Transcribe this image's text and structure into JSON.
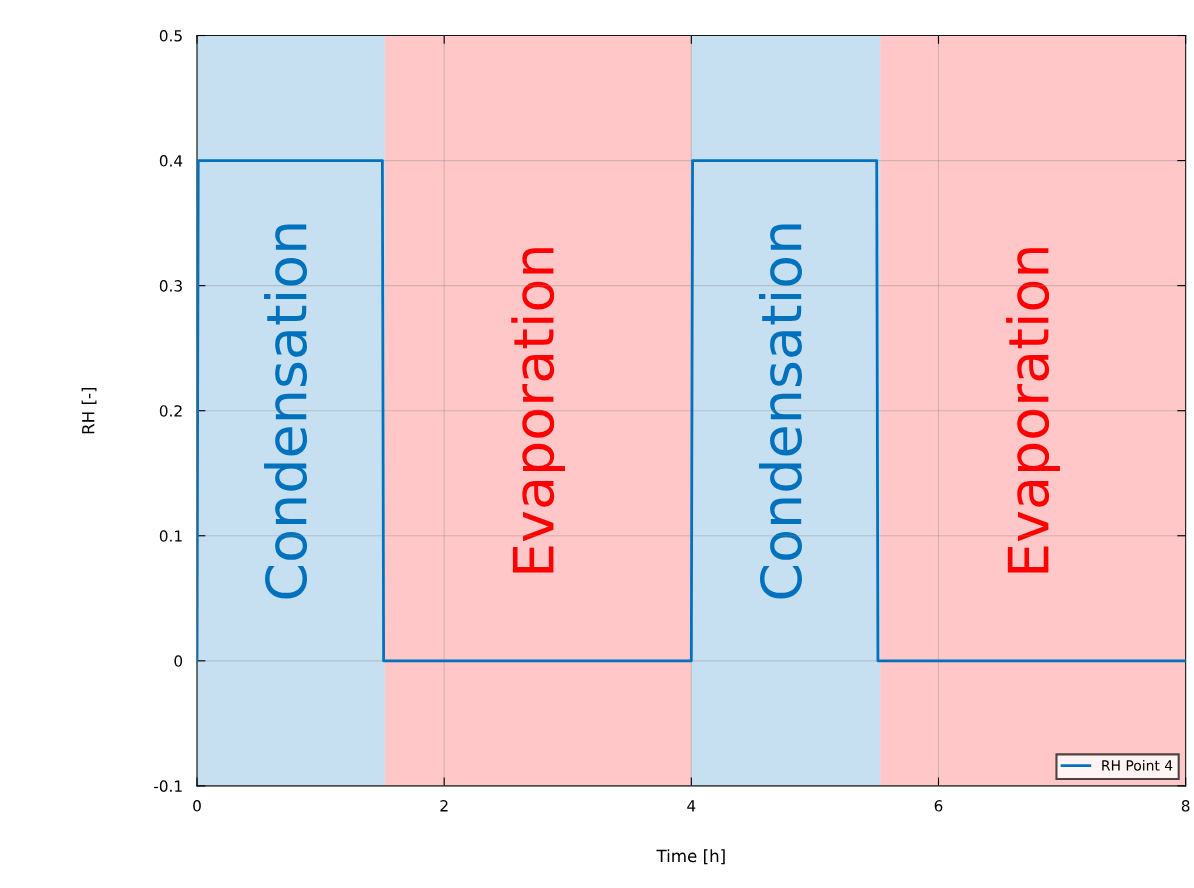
{
  "chart_data": {
    "type": "line",
    "xlabel": "Time [h]",
    "ylabel": "RH [-]",
    "x": [
      0,
      0.01,
      1.5,
      1.51,
      4.0,
      4.01,
      5.5,
      5.51,
      8
    ],
    "series": [
      {
        "name": "RH Point 4",
        "color": "#0072bd",
        "values": [
          0,
          0.4,
          0.4,
          0,
          0,
          0.4,
          0.4,
          0,
          0
        ]
      }
    ],
    "xlim": [
      0,
      8
    ],
    "xticks": [
      0,
      2,
      4,
      6,
      8
    ],
    "ylim": [
      -0.1,
      0.5
    ],
    "yticks": [
      -0.1,
      0,
      0.1,
      0.2,
      0.3,
      0.4,
      0.5
    ],
    "bands": [
      {
        "axis": "x",
        "from": 0,
        "to": 1.52,
        "label": "Condensation",
        "color": "#0072bd"
      },
      {
        "axis": "x",
        "from": 1.52,
        "to": 4.0,
        "label": "Evaporation",
        "color": "#ff0000"
      },
      {
        "axis": "x",
        "from": 4.0,
        "to": 5.53,
        "label": "Condensation",
        "color": "#0072bd"
      },
      {
        "axis": "x",
        "from": 5.53,
        "to": 8,
        "label": "Evaporation",
        "color": "#ff0000"
      }
    ],
    "grid": true,
    "legend": "lower right",
    "marker": "none",
    "line_style": "solid"
  }
}
